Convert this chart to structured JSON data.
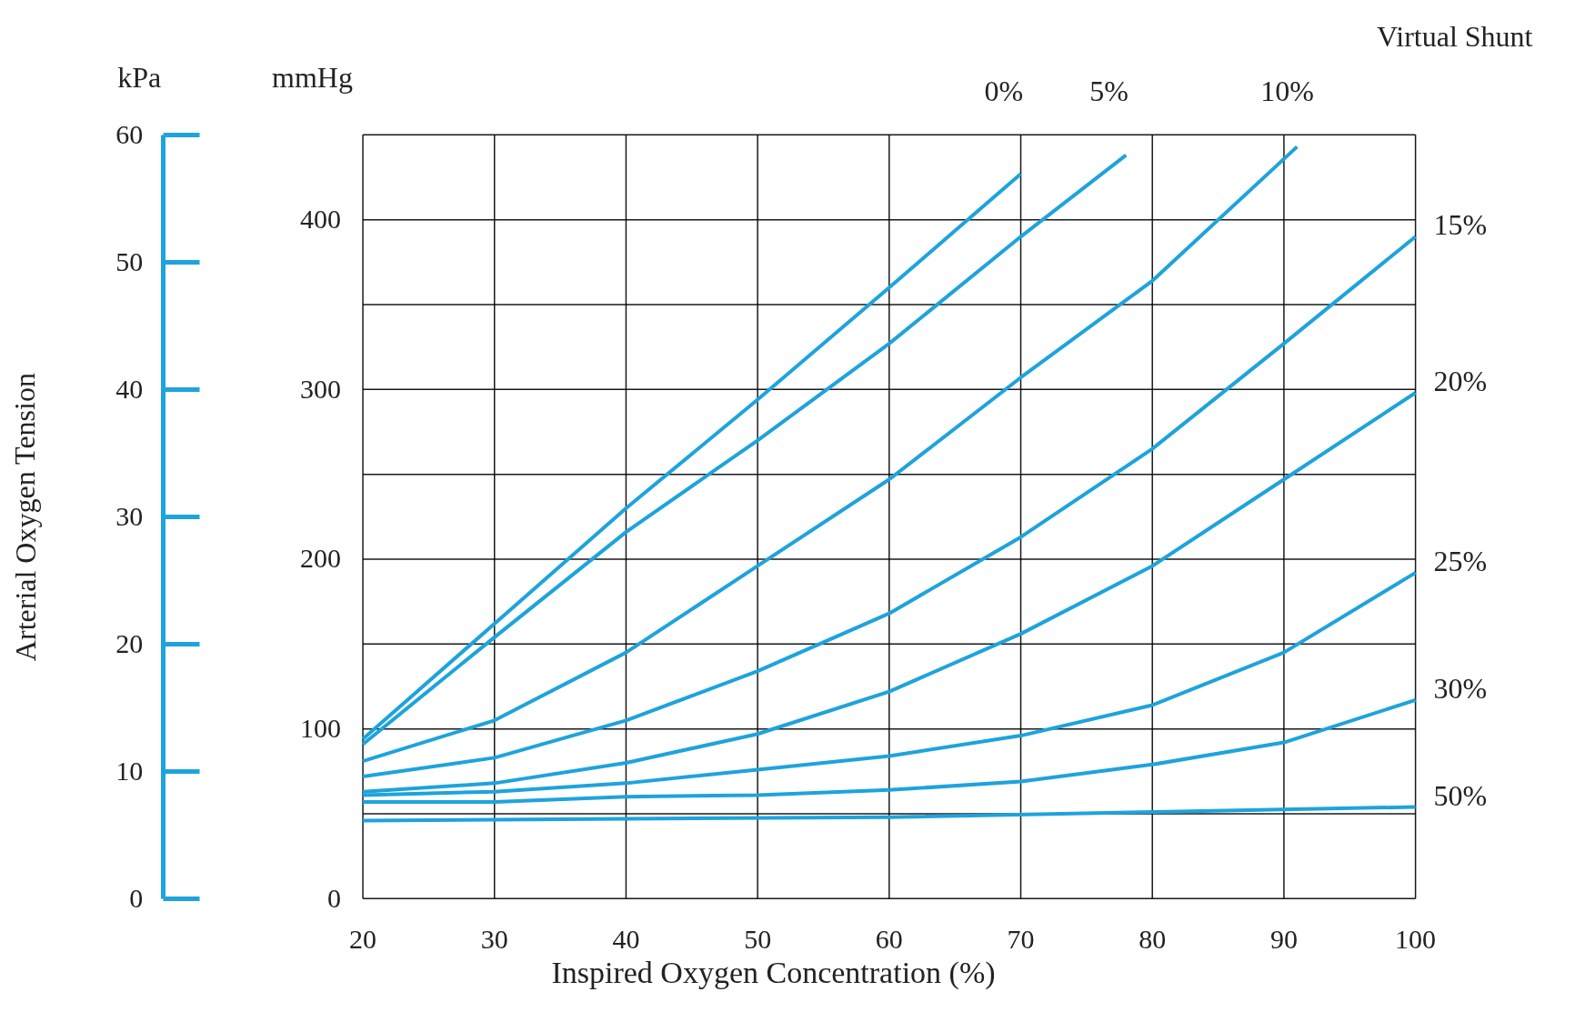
{
  "chart_data": {
    "type": "line",
    "xlabel": "Inspired Oxygen Concentration (%)",
    "ylabel": "mmHg",
    "y2label": "kPa",
    "legend_title": "Virtual Shunt",
    "annotations": [
      "Arterial Oxygen Tension"
    ],
    "xlim": [
      20,
      100
    ],
    "xticks": [
      20,
      30,
      40,
      50,
      60,
      70,
      80,
      90,
      100
    ],
    "ylim": [
      0,
      450
    ],
    "yticks": [
      0,
      {
        "value": 50,
        "label": null
      },
      100,
      {
        "value": 150,
        "label": null
      },
      200,
      {
        "value": 250,
        "label": null
      },
      300,
      {
        "value": 350,
        "label": null
      },
      400,
      {
        "value": 450,
        "label": null
      }
    ],
    "y2lim": [
      0,
      60
    ],
    "y2ticks": [
      0,
      10,
      20,
      30,
      40,
      50,
      60
    ],
    "grid": true,
    "legend": false,
    "marker": "none",
    "line_style": "solid",
    "series": [
      {
        "name": "0%",
        "color": "#1ea3dc",
        "x": [
          20,
          30,
          40,
          50,
          60,
          70
        ],
        "values": [
          94,
          162,
          230,
          294,
          360,
          427
        ]
      },
      {
        "name": "5%",
        "color": "#1ea3dc",
        "x": [
          20,
          30,
          40,
          50,
          60,
          70,
          78
        ],
        "values": [
          91,
          154,
          216,
          270,
          327,
          390,
          438
        ]
      },
      {
        "name": "10%",
        "color": "#1ea3dc",
        "x": [
          20,
          30,
          40,
          50,
          60,
          70,
          80,
          91
        ],
        "values": [
          81,
          105,
          145,
          196,
          247,
          307,
          364,
          443
        ]
      },
      {
        "name": "15%",
        "color": "#1ea3dc",
        "x": [
          20,
          30,
          40,
          50,
          60,
          70,
          80,
          90,
          100
        ],
        "values": [
          72,
          83,
          105,
          134,
          168,
          213,
          265,
          327,
          390
        ]
      },
      {
        "name": "20%",
        "color": "#1ea3dc",
        "x": [
          20,
          30,
          40,
          50,
          60,
          70,
          80,
          90,
          100
        ],
        "values": [
          63,
          68,
          80,
          97,
          122,
          156,
          196,
          247,
          298
        ]
      },
      {
        "name": "25%",
        "color": "#1ea3dc",
        "x": [
          20,
          30,
          40,
          50,
          60,
          70,
          80,
          90,
          100
        ],
        "values": [
          61,
          63,
          68,
          76,
          84,
          96,
          114,
          145,
          192
        ]
      },
      {
        "name": "30%",
        "color": "#1ea3dc",
        "x": [
          20,
          30,
          40,
          50,
          60,
          70,
          80,
          90,
          100
        ],
        "values": [
          57,
          57,
          60,
          61,
          64,
          69,
          79,
          92,
          117
        ]
      },
      {
        "name": "50%",
        "color": "#1ea3dc",
        "x": [
          20,
          40,
          60,
          80,
          100
        ],
        "values": [
          46,
          47,
          48,
          51,
          54
        ]
      }
    ]
  }
}
